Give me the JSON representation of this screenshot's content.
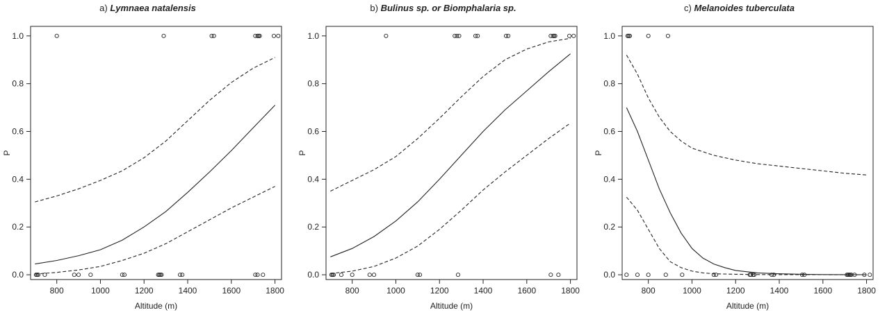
{
  "chart_data": [
    {
      "type": "line",
      "panel_label": "a)",
      "title": "Lymnaea natalensis",
      "xlabel": "Altitude (m)",
      "ylabel": "P",
      "xlim": [
        680,
        1830
      ],
      "ylim": [
        -0.02,
        1.04
      ],
      "xticks": [
        800,
        1000,
        1200,
        1400,
        1600,
        1800
      ],
      "yticks": [
        0.0,
        0.2,
        0.4,
        0.6,
        0.8,
        1.0
      ],
      "series": [
        {
          "role": "fit",
          "style": "solid",
          "x": [
            700,
            800,
            900,
            1000,
            1100,
            1200,
            1300,
            1400,
            1500,
            1600,
            1700,
            1800
          ],
          "y": [
            0.045,
            0.06,
            0.08,
            0.105,
            0.145,
            0.2,
            0.265,
            0.345,
            0.43,
            0.52,
            0.615,
            0.71
          ]
        },
        {
          "role": "upper_ci",
          "style": "dashed",
          "x": [
            700,
            800,
            900,
            1000,
            1100,
            1200,
            1300,
            1400,
            1500,
            1600,
            1700,
            1800
          ],
          "y": [
            0.305,
            0.33,
            0.36,
            0.395,
            0.435,
            0.49,
            0.56,
            0.645,
            0.73,
            0.805,
            0.865,
            0.91
          ]
        },
        {
          "role": "lower_ci",
          "style": "dashed",
          "x": [
            700,
            800,
            900,
            1000,
            1100,
            1200,
            1300,
            1400,
            1500,
            1600,
            1700,
            1800
          ],
          "y": [
            0.003,
            0.01,
            0.02,
            0.035,
            0.06,
            0.09,
            0.13,
            0.18,
            0.23,
            0.28,
            0.325,
            0.37
          ]
        },
        {
          "role": "observations",
          "style": "points",
          "x": [
            800,
            1290,
            1510,
            1520,
            1710,
            1720,
            1725,
            1730,
            1795,
            1815,
            705,
            710,
            715,
            745,
            880,
            900,
            955,
            1100,
            1110,
            1265,
            1270,
            1275,
            1280,
            1365,
            1375,
            1710,
            1720,
            1745
          ],
          "y": [
            1,
            1,
            1,
            1,
            1,
            1,
            1,
            1,
            1,
            1,
            0,
            0,
            0,
            0,
            0,
            0,
            0,
            0,
            0,
            0,
            0,
            0,
            0,
            0,
            0,
            0,
            0,
            0
          ]
        }
      ]
    },
    {
      "type": "line",
      "panel_label": "b)",
      "title": "Bulinus sp. or Biomphalaria sp.",
      "xlabel": "Altitude (m)",
      "ylabel": "P",
      "xlim": [
        680,
        1830
      ],
      "ylim": [
        -0.02,
        1.04
      ],
      "xticks": [
        800,
        1000,
        1200,
        1400,
        1600,
        1800
      ],
      "yticks": [
        0.0,
        0.2,
        0.4,
        0.6,
        0.8,
        1.0
      ],
      "series": [
        {
          "role": "fit",
          "style": "solid",
          "x": [
            700,
            800,
            900,
            1000,
            1100,
            1200,
            1300,
            1400,
            1500,
            1600,
            1700,
            1800
          ],
          "y": [
            0.075,
            0.11,
            0.16,
            0.225,
            0.305,
            0.4,
            0.5,
            0.6,
            0.69,
            0.77,
            0.85,
            0.925
          ]
        },
        {
          "role": "upper_ci",
          "style": "dashed",
          "x": [
            700,
            800,
            900,
            1000,
            1100,
            1200,
            1300,
            1400,
            1500,
            1600,
            1700,
            1800
          ],
          "y": [
            0.35,
            0.395,
            0.44,
            0.495,
            0.57,
            0.655,
            0.745,
            0.83,
            0.9,
            0.945,
            0.975,
            0.99
          ]
        },
        {
          "role": "lower_ci",
          "style": "dashed",
          "x": [
            700,
            800,
            900,
            1000,
            1100,
            1200,
            1300,
            1400,
            1500,
            1600,
            1700,
            1800
          ],
          "y": [
            0.005,
            0.015,
            0.035,
            0.07,
            0.12,
            0.19,
            0.27,
            0.355,
            0.43,
            0.5,
            0.57,
            0.635
          ]
        },
        {
          "role": "observations",
          "style": "points",
          "x": [
            955,
            1270,
            1280,
            1290,
            1365,
            1375,
            1505,
            1515,
            1710,
            1720,
            1725,
            1730,
            1795,
            1815,
            705,
            710,
            715,
            750,
            800,
            880,
            900,
            1100,
            1110,
            1285,
            1710,
            1745
          ],
          "y": [
            1,
            1,
            1,
            1,
            1,
            1,
            1,
            1,
            1,
            1,
            1,
            1,
            1,
            1,
            0,
            0,
            0,
            0,
            0,
            0,
            0,
            0,
            0,
            0,
            0,
            0
          ]
        }
      ]
    },
    {
      "type": "line",
      "panel_label": "c)",
      "title": "Melanoides tuberculata",
      "xlabel": "Altitude (m)",
      "ylabel": "P",
      "xlim": [
        680,
        1830
      ],
      "ylim": [
        -0.02,
        1.04
      ],
      "xticks": [
        800,
        1000,
        1200,
        1400,
        1600,
        1800
      ],
      "yticks": [
        0.0,
        0.2,
        0.4,
        0.6,
        0.8,
        1.0
      ],
      "series": [
        {
          "role": "fit",
          "style": "solid",
          "x": [
            700,
            750,
            800,
            850,
            900,
            950,
            1000,
            1050,
            1100,
            1150,
            1200,
            1300,
            1400,
            1500,
            1600,
            1700,
            1800
          ],
          "y": [
            0.7,
            0.6,
            0.48,
            0.36,
            0.26,
            0.175,
            0.11,
            0.07,
            0.045,
            0.03,
            0.018,
            0.008,
            0.004,
            0.002,
            0.001,
            0.0005,
            0.0002
          ]
        },
        {
          "role": "upper_ci",
          "style": "dashed",
          "x": [
            700,
            750,
            800,
            850,
            900,
            950,
            1000,
            1100,
            1200,
            1300,
            1400,
            1500,
            1600,
            1700,
            1800
          ],
          "y": [
            0.92,
            0.84,
            0.74,
            0.66,
            0.6,
            0.56,
            0.53,
            0.5,
            0.48,
            0.465,
            0.455,
            0.445,
            0.435,
            0.425,
            0.418
          ]
        },
        {
          "role": "lower_ci",
          "style": "dashed",
          "x": [
            700,
            750,
            800,
            850,
            900,
            950,
            1000,
            1050,
            1100,
            1200,
            1300,
            1400,
            1600,
            1800
          ],
          "y": [
            0.325,
            0.27,
            0.19,
            0.11,
            0.055,
            0.03,
            0.015,
            0.008,
            0.004,
            0.002,
            0.001,
            0.0005,
            0.0002,
            0.0001
          ]
        },
        {
          "role": "observations",
          "style": "points",
          "x": [
            705,
            710,
            715,
            800,
            890,
            700,
            750,
            800,
            880,
            955,
            1100,
            1110,
            1265,
            1270,
            1280,
            1285,
            1365,
            1375,
            1505,
            1515,
            1710,
            1715,
            1720,
            1725,
            1730,
            1745,
            1790,
            1815
          ],
          "y": [
            1,
            1,
            1,
            1,
            1,
            0,
            0,
            0,
            0,
            0,
            0,
            0,
            0,
            0,
            0,
            0,
            0,
            0,
            0,
            0,
            0,
            0,
            0,
            0,
            0,
            0,
            0,
            0
          ]
        }
      ]
    }
  ]
}
